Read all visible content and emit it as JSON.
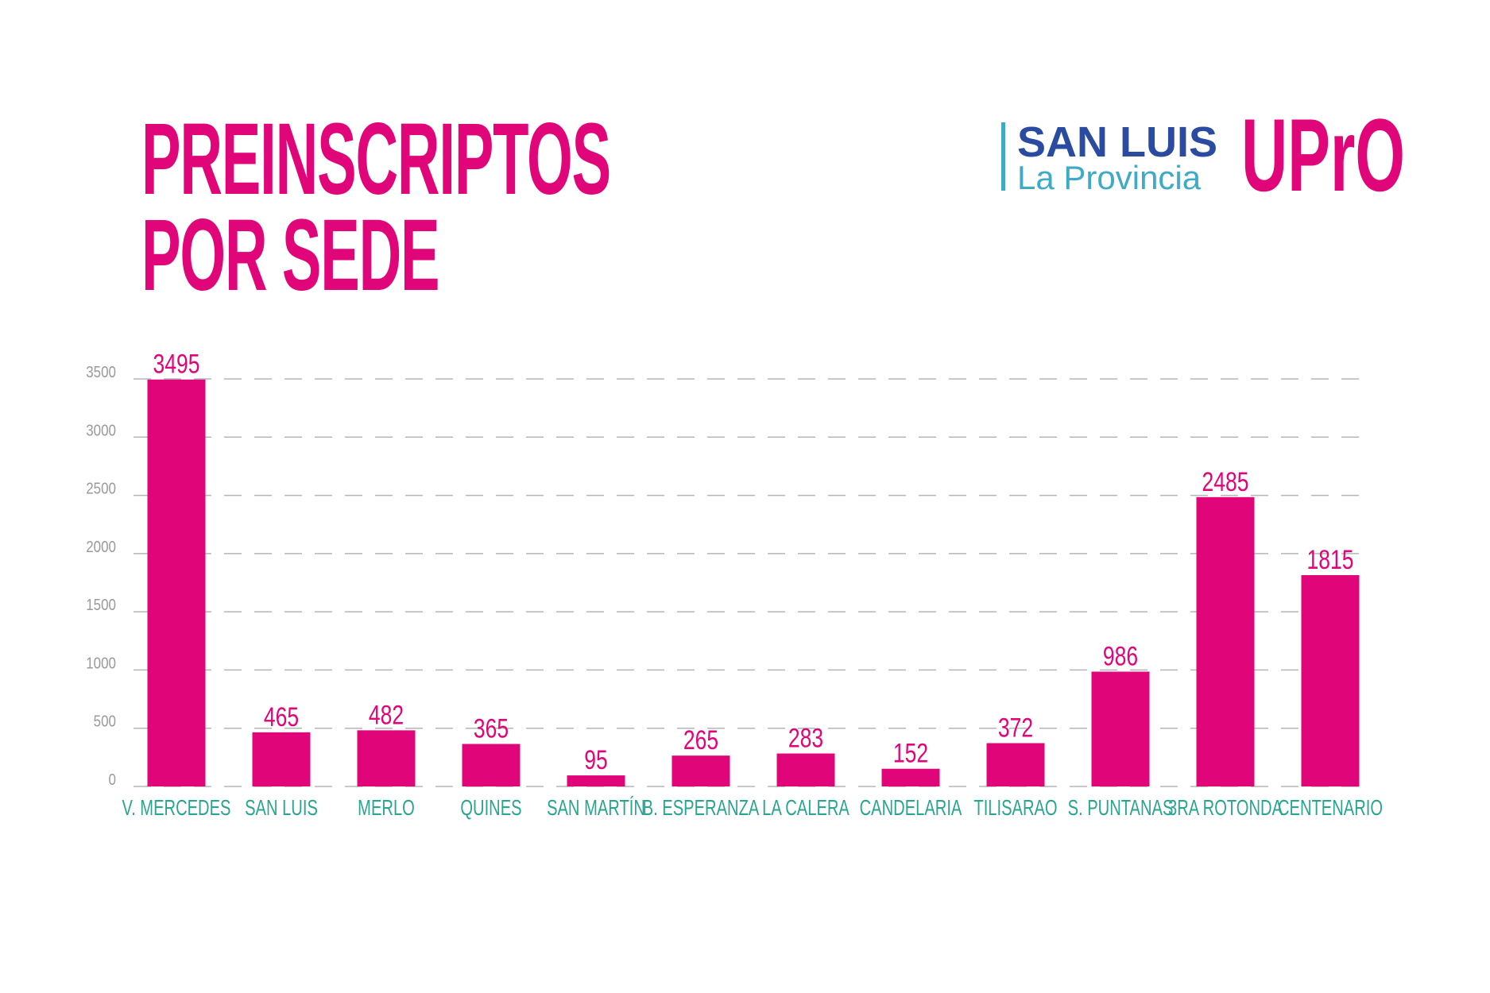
{
  "header": {
    "title_line1": "PREINSCRIPTOS",
    "title_line2": "POR SEDE"
  },
  "logos": {
    "province_top": "SAN LUIS",
    "province_bottom": "La Provincia",
    "upro": "UPrO"
  },
  "colors": {
    "bar": "#e0067a",
    "category_label": "#2aa58f",
    "tick_label": "#9a9a9a",
    "grid": "#b5b5b5",
    "logo_dark": "#2a4ba0",
    "logo_light": "#3eaac6"
  },
  "chart_data": {
    "type": "bar",
    "title": "PREINSCRIPTOS POR SEDE",
    "xlabel": "",
    "ylabel": "",
    "categories": [
      "V. MERCEDES",
      "SAN LUIS",
      "MERLO",
      "QUINES",
      "SAN MARTÍN",
      "B. ESPERANZA",
      "LA CALERA",
      "CANDELARIA",
      "TILISARAO",
      "S. PUNTANAS",
      "3RA ROTONDA",
      "CENTENARIO"
    ],
    "values": [
      3495,
      465,
      482,
      365,
      95,
      265,
      283,
      152,
      372,
      986,
      2485,
      1815
    ],
    "data_labels": [
      "3495",
      "465",
      "482",
      "365",
      "95",
      "265",
      "283",
      "152",
      "372",
      "986",
      "2485",
      "1815"
    ],
    "ylim": [
      0,
      3500
    ],
    "yticks": [
      0,
      500,
      1000,
      1500,
      2000,
      2500,
      3000,
      3500
    ],
    "ytick_labels": [
      "0",
      "500",
      "1000",
      "1500",
      "2000",
      "2500",
      "3000",
      "3500"
    ],
    "grid": "dashed horizontal",
    "legend": "none"
  }
}
